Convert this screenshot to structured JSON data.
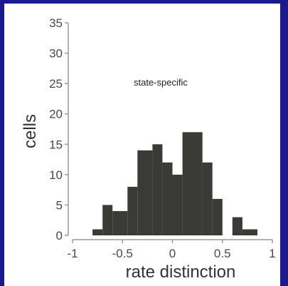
{
  "chart_data": {
    "type": "bar",
    "xlabel": "rate distinction",
    "ylabel": "cells",
    "annotation": "state-specific",
    "bar_color": "#3a3a36",
    "axis_color": "#9a9a9a",
    "xlim": [
      -1,
      1
    ],
    "ylim": [
      0,
      35
    ],
    "xticks": [
      -1,
      -0.5,
      0,
      0.5,
      1
    ],
    "xtick_labels": [
      "-1",
      "-0.5",
      "0",
      "0.5",
      "1"
    ],
    "yticks": [
      0,
      5,
      10,
      15,
      20,
      25,
      30,
      35
    ],
    "bins": [
      {
        "x0": -0.8,
        "x1": -0.7,
        "count": 1
      },
      {
        "x0": -0.7,
        "x1": -0.6,
        "count": 5
      },
      {
        "x0": -0.6,
        "x1": -0.45,
        "count": 4
      },
      {
        "x0": -0.45,
        "x1": -0.35,
        "count": 8
      },
      {
        "x0": -0.35,
        "x1": -0.2,
        "count": 14
      },
      {
        "x0": -0.2,
        "x1": -0.1,
        "count": 15
      },
      {
        "x0": -0.1,
        "x1": 0.0,
        "count": 12
      },
      {
        "x0": 0.0,
        "x1": 0.1,
        "count": 10
      },
      {
        "x0": 0.1,
        "x1": 0.3,
        "count": 17
      },
      {
        "x0": 0.3,
        "x1": 0.4,
        "count": 12
      },
      {
        "x0": 0.4,
        "x1": 0.5,
        "count": 6
      },
      {
        "x0": 0.6,
        "x1": 0.7,
        "count": 3
      },
      {
        "x0": 0.7,
        "x1": 0.85,
        "count": 1
      }
    ]
  }
}
